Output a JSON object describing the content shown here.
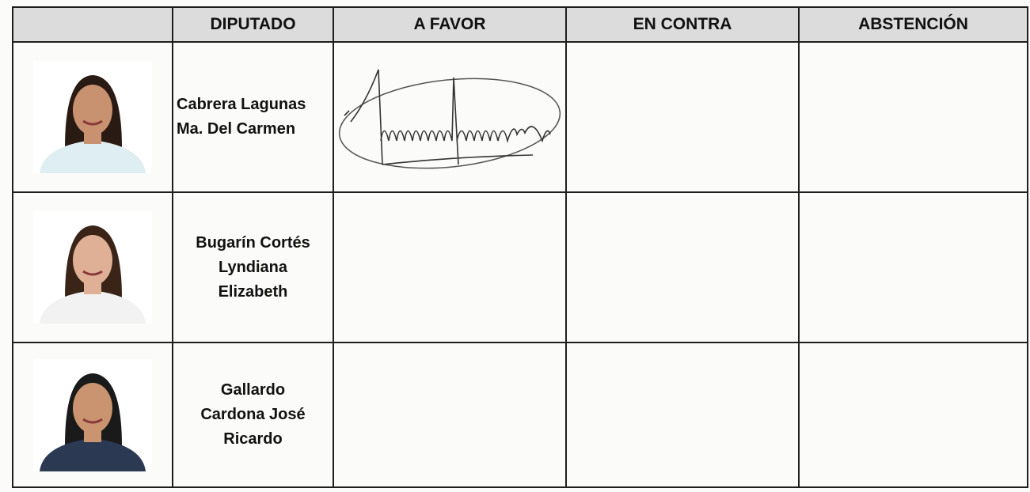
{
  "table": {
    "headers": [
      "DIPUTADO",
      "A FAVOR",
      "EN CONTRA",
      "ABSTENCIÓN"
    ],
    "rows": [
      {
        "name": [
          "Cabrera Lagunas",
          "Ma. Del Carmen"
        ]
      },
      {
        "name": [
          "Bugarín Cortés",
          "Lyndiana",
          "Elizabeth"
        ]
      },
      {
        "name": [
          "Gallardo",
          "Cardona José",
          "Ricardo"
        ]
      }
    ]
  }
}
